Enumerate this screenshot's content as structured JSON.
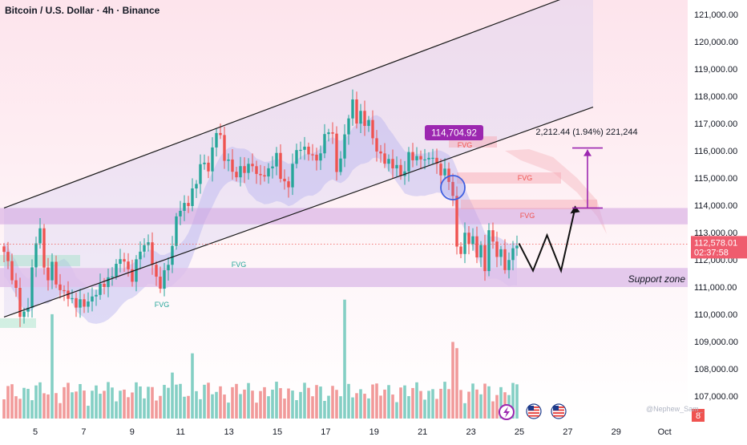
{
  "header": {
    "title": "Bitcoin / U.S. Dollar · 4h · Binance"
  },
  "watermark": "@Nephew_Sam_",
  "price_label": {
    "value": "112,578.01",
    "countdown": "02:37:58"
  },
  "peak_label": "114,704.92",
  "measure_label": "2,212.44 (1.94%) 221,244",
  "support_label": "Support zone",
  "fvg_label": "FVG",
  "badge": "8",
  "event_icons": [
    "lightning-icon",
    "us-flag-icon",
    "us-flag-icon"
  ],
  "colors": {
    "up": "#26a69a",
    "down": "#ef5350",
    "vol_up": "#84cfc4",
    "vol_down": "#f19a9a",
    "zone": "#cfa3e0",
    "channel": "#1a1a1a",
    "label": "#9c27b0",
    "price_tag": "#ef5c6e",
    "support": "#dfc1ea",
    "cloud": "#b7b4ef"
  },
  "chart_data": {
    "type": "candlestick",
    "title": "Bitcoin / U.S. Dollar · 4h · Binance",
    "y_axis": {
      "min": 106500,
      "max": 121500,
      "side": "right",
      "ticks": [
        "121,000.00",
        "120,000.00",
        "119,000.00",
        "118,000.00",
        "117,000.00",
        "116,000.00",
        "115,000.00",
        "114,000.00",
        "113,000.00",
        "112,000.00",
        "111,000.00",
        "110,000.00",
        "109,000.00",
        "108,000.00",
        "107,000.00"
      ]
    },
    "x_axis": {
      "tick_labels": [
        "5",
        "7",
        "9",
        "11",
        "13",
        "15",
        "17",
        "19",
        "21",
        "23",
        "25",
        "27",
        "29",
        "Oct"
      ]
    },
    "price_path": [
      [
        0,
        112200
      ],
      [
        1.5,
        111700
      ],
      [
        3,
        110900
      ],
      [
        4,
        110000
      ],
      [
        5,
        109900
      ],
      [
        6,
        110300
      ],
      [
        7,
        111800
      ],
      [
        8,
        112600
      ],
      [
        9,
        113200
      ],
      [
        10,
        111500
      ],
      [
        11,
        111400
      ],
      [
        12,
        111900
      ],
      [
        13,
        111200
      ],
      [
        14,
        110800
      ],
      [
        16,
        110700
      ],
      [
        18,
        110400
      ],
      [
        20,
        110300
      ],
      [
        22,
        110700
      ],
      [
        24,
        110900
      ],
      [
        26,
        111300
      ],
      [
        28,
        111800
      ],
      [
        30,
        112000
      ],
      [
        31,
        111600
      ],
      [
        32,
        111400
      ],
      [
        34,
        112300
      ],
      [
        36,
        112700
      ],
      [
        38,
        111200
      ],
      [
        39,
        111000
      ],
      [
        40,
        111500
      ],
      [
        42,
        112500
      ],
      [
        43,
        113500
      ],
      [
        44,
        113800
      ],
      [
        46,
        114200
      ],
      [
        48,
        114800
      ],
      [
        49,
        115400
      ],
      [
        50,
        115600
      ],
      [
        51,
        115400
      ],
      [
        52,
        116000
      ],
      [
        53,
        116700
      ],
      [
        54,
        116400
      ],
      [
        55,
        115800
      ],
      [
        56,
        115700
      ],
      [
        57,
        115200
      ],
      [
        58,
        115000
      ],
      [
        59,
        115300
      ],
      [
        60,
        115400
      ],
      [
        62,
        115500
      ],
      [
        63,
        115000
      ],
      [
        64,
        115100
      ],
      [
        66,
        115300
      ],
      [
        67,
        115500
      ],
      [
        68,
        115700
      ],
      [
        69,
        115100
      ],
      [
        70,
        114900
      ],
      [
        71,
        114700
      ],
      [
        72,
        115500
      ],
      [
        74,
        116200
      ],
      [
        76,
        116000
      ],
      [
        77,
        115700
      ],
      [
        78,
        115600
      ],
      [
        79,
        116000
      ],
      [
        80,
        116600
      ],
      [
        81,
        116800
      ],
      [
        82,
        116400
      ],
      [
        83,
        115300
      ],
      [
        84,
        115700
      ],
      [
        85,
        116700
      ],
      [
        86,
        117200
      ],
      [
        87,
        117700
      ],
      [
        88,
        117100
      ],
      [
        89,
        117400
      ],
      [
        90,
        117100
      ],
      [
        91,
        117000
      ],
      [
        92,
        116400
      ],
      [
        93,
        116000
      ],
      [
        94,
        115900
      ],
      [
        95,
        115700
      ],
      [
        96,
        115500
      ],
      [
        97,
        115400
      ],
      [
        98,
        115400
      ],
      [
        99,
        115200
      ],
      [
        100,
        115300
      ],
      [
        101,
        115800
      ],
      [
        102,
        115700
      ],
      [
        103,
        115700
      ],
      [
        104,
        115900
      ],
      [
        105,
        115600
      ],
      [
        106,
        115700
      ],
      [
        107,
        115700
      ],
      [
        108,
        115500
      ],
      [
        109,
        115300
      ],
      [
        110,
        115200
      ],
      [
        111,
        114900
      ],
      [
        112,
        114200
      ],
      [
        113,
        112600
      ],
      [
        114,
        112300
      ],
      [
        115,
        112900
      ],
      [
        116,
        112600
      ],
      [
        117,
        112700
      ],
      [
        118,
        112300
      ],
      [
        119,
        112500
      ],
      [
        120,
        111600
      ],
      [
        121,
        113000
      ],
      [
        122,
        112600
      ],
      [
        123,
        112300
      ],
      [
        124,
        112300
      ],
      [
        125,
        111700
      ],
      [
        126,
        111800
      ],
      [
        127,
        112500
      ],
      [
        128,
        112600
      ]
    ],
    "projection": {
      "x": [
        128.5,
        132,
        135.5,
        139,
        142.5
      ],
      "y": [
        112600,
        111600,
        112900,
        111600,
        113900
      ]
    },
    "channel": {
      "upper": {
        "x": [
          0,
          147
        ],
        "y": [
          113900,
          122000
        ]
      },
      "lower": {
        "x": [
          0,
          147
        ],
        "y": [
          109900,
          117600
        ]
      }
    },
    "zones": [
      {
        "y": [
          113300,
          113900
        ]
      },
      {
        "y": [
          111000,
          111700
        ],
        "label": "Support zone"
      }
    ],
    "measure_bar": {
      "x": 143.5,
      "y": [
        113900,
        116100
      ]
    },
    "annotations": [
      "114,704.92",
      "2,212.44 (1.94%) 221,244",
      "FVG",
      "Support zone"
    ],
    "last_price": 112578.01
  }
}
